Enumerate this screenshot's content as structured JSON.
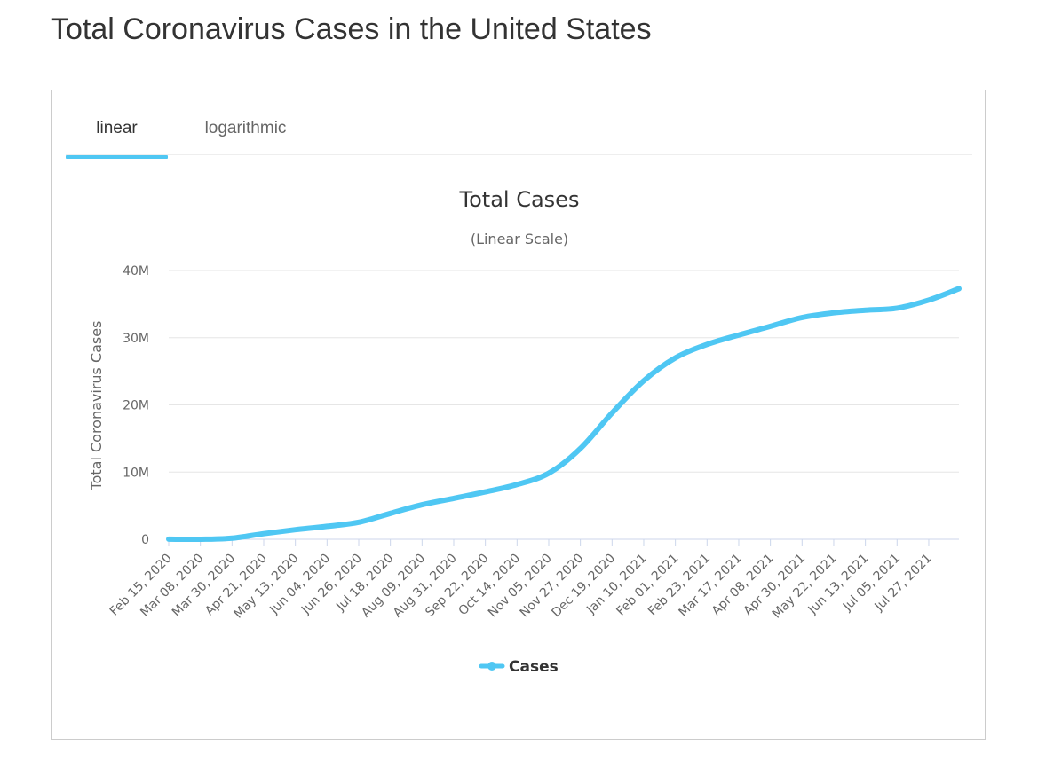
{
  "page": {
    "title": "Total Coronavirus Cases in the United States"
  },
  "tabs": [
    {
      "label": "linear",
      "active": true
    },
    {
      "label": "logarithmic",
      "active": false
    }
  ],
  "colors": {
    "series": "#4fc7f3",
    "grid": "#e6e6e6",
    "axis": "#ccd6eb",
    "text": "#333333",
    "muted": "#666666"
  },
  "chart_data": {
    "type": "line",
    "title": "Total Cases",
    "subtitle": "(Linear Scale)",
    "ylabel": "Total Coronavirus Cases",
    "xlabel": "",
    "ylim": [
      0,
      40000000
    ],
    "y_ticks": [
      {
        "value": 0,
        "label": "0"
      },
      {
        "value": 10000000,
        "label": "10M"
      },
      {
        "value": 20000000,
        "label": "20M"
      },
      {
        "value": 30000000,
        "label": "30M"
      },
      {
        "value": 40000000,
        "label": "40M"
      }
    ],
    "x_ticks": [
      "Feb 15, 2020",
      "Mar 08, 2020",
      "Mar 30, 2020",
      "Apr 21, 2020",
      "May 13, 2020",
      "Jun 04, 2020",
      "Jun 26, 2020",
      "Jul 18, 2020",
      "Aug 09, 2020",
      "Aug 31, 2020",
      "Sep 22, 2020",
      "Oct 14, 2020",
      "Nov 05, 2020",
      "Nov 27, 2020",
      "Dec 19, 2020",
      "Jan 10, 2021",
      "Feb 01, 2021",
      "Feb 23, 2021",
      "Mar 17, 2021",
      "Apr 08, 2021",
      "Apr 30, 2021",
      "May 22, 2021",
      "Jun 13, 2021",
      "Jul 05, 2021",
      "Jul 27, 2021"
    ],
    "x_range": [
      "Feb 15, 2020",
      "Aug 17, 2021"
    ],
    "grid": true,
    "legend": {
      "position": "bottom-center",
      "entries": [
        "Cases"
      ]
    },
    "series": [
      {
        "name": "Cases",
        "points": [
          [
            "Feb 15, 2020",
            15000
          ],
          [
            "Mar 08, 2020",
            500
          ],
          [
            "Mar 30, 2020",
            160000
          ],
          [
            "Apr 21, 2020",
            830000
          ],
          [
            "May 13, 2020",
            1420000
          ],
          [
            "Jun 04, 2020",
            1930000
          ],
          [
            "Jun 26, 2020",
            2530000
          ],
          [
            "Jul 18, 2020",
            3860000
          ],
          [
            "Aug 09, 2020",
            5130000
          ],
          [
            "Aug 31, 2020",
            6080000
          ],
          [
            "Sep 22, 2020",
            7050000
          ],
          [
            "Oct 14, 2020",
            8150000
          ],
          [
            "Nov 05, 2020",
            9830000
          ],
          [
            "Nov 27, 2020",
            13500000
          ],
          [
            "Dec 19, 2020",
            18800000
          ],
          [
            "Jan 10, 2021",
            23600000
          ],
          [
            "Feb 01, 2021",
            27000000
          ],
          [
            "Feb 23, 2021",
            29000000
          ],
          [
            "Mar 17, 2021",
            30400000
          ],
          [
            "Apr 08, 2021",
            31700000
          ],
          [
            "Apr 30, 2021",
            33000000
          ],
          [
            "May 22, 2021",
            33700000
          ],
          [
            "Jun 13, 2021",
            34100000
          ],
          [
            "Jul 05, 2021",
            34400000
          ],
          [
            "Jul 27, 2021",
            35600000
          ],
          [
            "Aug 17, 2021",
            37300000
          ]
        ]
      }
    ]
  }
}
